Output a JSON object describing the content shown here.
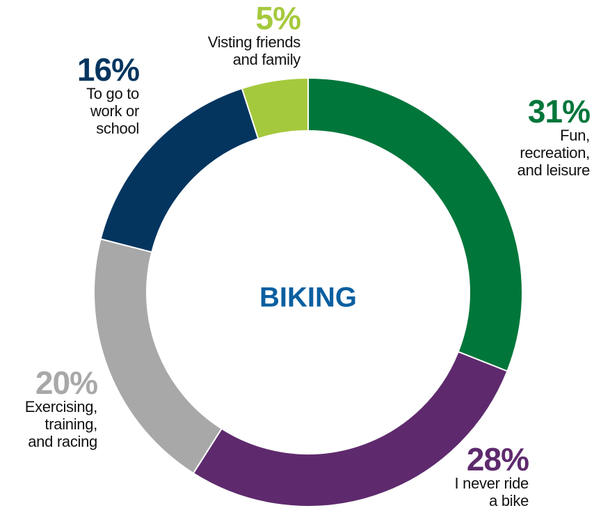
{
  "chart_data": {
    "type": "donut",
    "title": "BIKING",
    "categories": [
      "Fun,\nrecreation,\nand leisure",
      "I never ride\na bike",
      "Exercising,\ntraining,\nand racing",
      "To go to\nwork or\nschool",
      "Visting friends\nand family"
    ],
    "values": [
      31,
      28,
      20,
      16,
      5
    ],
    "value_labels": [
      "31%",
      "28%",
      "20%",
      "16%",
      "5%"
    ],
    "colors": [
      "#00763a",
      "#5e2a6d",
      "#a8a8a8",
      "#03355f",
      "#a5c93c"
    ]
  }
}
